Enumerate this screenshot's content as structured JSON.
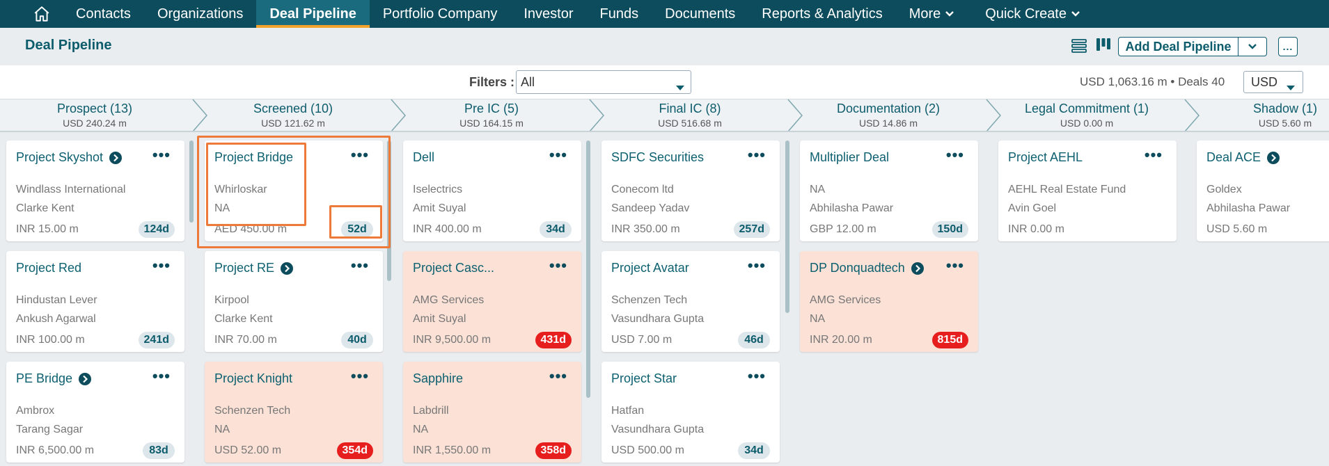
{
  "nav": {
    "items": [
      "Contacts",
      "Organizations",
      "Deal Pipeline",
      "Portfolio Company",
      "Investor",
      "Funds",
      "Documents",
      "Reports & Analytics",
      "More",
      "Quick Create"
    ],
    "active": "Deal Pipeline"
  },
  "header": {
    "title": "Deal Pipeline",
    "add_label": "Add Deal Pipeline",
    "more_label": "..."
  },
  "filters": {
    "label": "Filters :",
    "value": "All",
    "totals": "USD 1,063.16 m • Deals 40",
    "currency": "USD"
  },
  "stages": [
    {
      "name": "Prospect (13)",
      "amount": "USD 240.24 m"
    },
    {
      "name": "Screened (10)",
      "amount": "USD 121.62 m"
    },
    {
      "name": "Pre IC (5)",
      "amount": "USD 164.15 m"
    },
    {
      "name": "Final IC (8)",
      "amount": "USD 516.68 m"
    },
    {
      "name": "Documentation (2)",
      "amount": "USD 14.86 m"
    },
    {
      "name": "Legal Commitment (1)",
      "amount": "USD 0.00 m"
    },
    {
      "name": "Shadow (1)",
      "amount": "USD 5.60 m"
    }
  ],
  "columns": [
    [
      {
        "title": "Project Skyshot",
        "link": true,
        "line1": "Windlass International",
        "line2": "Clarke Kent",
        "amount": "INR 15.00 m",
        "age": "124d",
        "overdue": false
      },
      {
        "title": "Project Red",
        "link": false,
        "line1": "Hindustan Lever",
        "line2": "Ankush Agarwal",
        "amount": "INR 100.00 m",
        "age": "241d",
        "overdue": false
      },
      {
        "title": "PE Bridge",
        "link": true,
        "line1": "Ambrox",
        "line2": "Tarang Sagar",
        "amount": "INR 6,500.00 m",
        "age": "83d",
        "overdue": false
      }
    ],
    [
      {
        "title": "Project Bridge",
        "link": false,
        "line1": "Whirloskar",
        "line2": "NA",
        "amount": "AED 450.00 m",
        "age": "52d",
        "overdue": false
      },
      {
        "title": "Project RE",
        "link": true,
        "line1": "Kirpool",
        "line2": "Clarke Kent",
        "amount": "INR 70.00 m",
        "age": "40d",
        "overdue": false
      },
      {
        "title": "Project Knight",
        "link": false,
        "line1": "Schenzen Tech",
        "line2": "NA",
        "amount": "USD 52.00 m",
        "age": "354d",
        "overdue": true
      }
    ],
    [
      {
        "title": "Dell",
        "link": false,
        "line1": "Iselectrics",
        "line2": "Amit Suyal",
        "amount": "INR 400.00 m",
        "age": "34d",
        "overdue": false
      },
      {
        "title": "Project Casc...",
        "link": false,
        "line1": "AMG Services",
        "line2": "Amit Suyal",
        "amount": "INR 9,500.00 m",
        "age": "431d",
        "overdue": true
      },
      {
        "title": "Sapphire",
        "link": false,
        "line1": "Labdrill",
        "line2": "NA",
        "amount": "INR 1,550.00 m",
        "age": "358d",
        "overdue": true
      }
    ],
    [
      {
        "title": "SDFC Securities",
        "link": false,
        "line1": "Conecom ltd",
        "line2": "Sandeep Yadav",
        "amount": "INR 350.00 m",
        "age": "257d",
        "overdue": false
      },
      {
        "title": "Project Avatar",
        "link": false,
        "line1": "Schenzen Tech",
        "line2": "Vasundhara Gupta",
        "amount": "USD 7.00 m",
        "age": "46d",
        "overdue": false
      },
      {
        "title": "Project Star",
        "link": false,
        "line1": "Hatfan",
        "line2": "Vasundhara Gupta",
        "amount": "USD 500.00 m",
        "age": "34d",
        "overdue": false
      }
    ],
    [
      {
        "title": "Multiplier Deal",
        "link": false,
        "line1": "NA",
        "line2": "Abhilasha Pawar",
        "amount": "GBP 12.00 m",
        "age": "150d",
        "overdue": false
      },
      {
        "title": "DP Donquadtech",
        "link": true,
        "line1": "AMG Services",
        "line2": "NA",
        "amount": "INR 20.00 m",
        "age": "815d",
        "overdue": true
      }
    ],
    [
      {
        "title": "Project AEHL",
        "link": false,
        "line1": "AEHL Real Estate Fund",
        "line2": "Avin Goel",
        "amount": "INR 0.00 m",
        "age": "",
        "overdue": false
      }
    ],
    [
      {
        "title": "Deal ACE",
        "link": true,
        "line1": "Goldex",
        "line2": "Abhilasha Pawar",
        "amount": "USD 5.60 m",
        "age": "",
        "overdue": false
      }
    ]
  ],
  "colors": {
    "nav_bg": "#0d4c5c",
    "accent": "#0d5c6c",
    "active_underline": "#f0a22a",
    "overdue_bg": "#fbe1d6",
    "overdue_badge": "#e61e1e",
    "highlight": "#ee7a3a"
  }
}
